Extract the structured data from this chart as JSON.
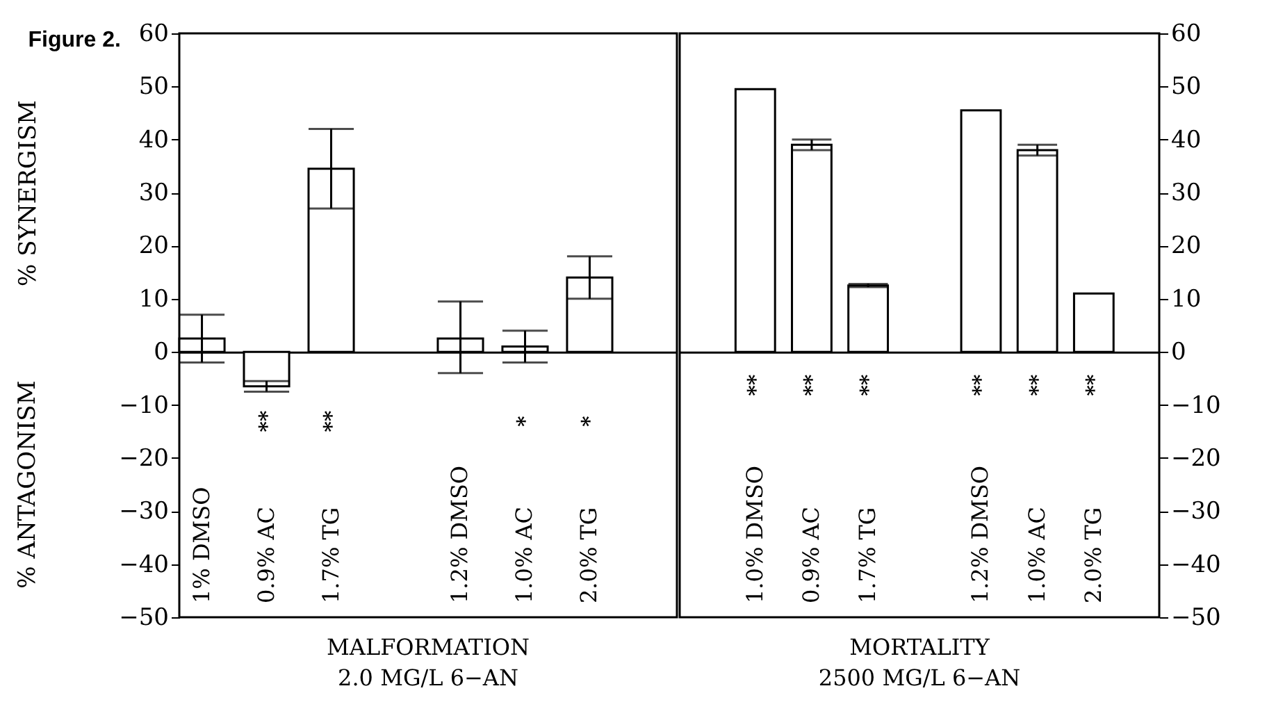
{
  "chart_data": [
    {
      "type": "bar",
      "title": "Figure 2.",
      "xlabel": "MALFORMATION\n2.0 MG/L 6−AN",
      "ylabel": "% SYNERGISM",
      "categories": [
        "1% DMSO",
        "0.9% AC",
        "1.7% TG",
        null,
        "1.2% DMSO",
        "1.0% AC",
        "2.0% TG"
      ],
      "values": [
        2.5,
        -6.5,
        34.5,
        null,
        2.5,
        1,
        14
      ],
      "errors": [
        [
          -2,
          7
        ],
        [
          -7.5,
          -5.5
        ],
        [
          27,
          42
        ],
        null,
        [
          -4,
          9.5
        ],
        [
          -2,
          4
        ],
        [
          10,
          18
        ]
      ],
      "color": "#ffffff",
      "ylim": [
        -50,
        60
      ],
      "yticks": [
        -50,
        -40,
        -30,
        -20,
        -10,
        0,
        10,
        20,
        30,
        40,
        50,
        60
      ],
      "value_labels": [
        null,
        "**",
        "**",
        null,
        null,
        "*",
        "*"
      ],
      "annotations": [
        "% ANTAGONISM"
      ]
    },
    {
      "type": "bar",
      "xlabel": "MORTALITY\n2500 MG/L 6−AN",
      "categories": [
        "1.0% DMSO",
        "0.9% AC",
        "1.7% TG",
        null,
        "1.2% DMSO",
        "1.0% AC",
        "2.0% TG"
      ],
      "values": [
        49.5,
        39,
        12.5,
        null,
        45.5,
        38,
        11
      ],
      "errors": [
        null,
        [
          38,
          40
        ],
        [
          12.2,
          12.8
        ],
        null,
        null,
        [
          37,
          39
        ],
        null
      ],
      "color": "#ffffff",
      "ylim": [
        -50,
        60
      ],
      "yticks": [
        -50,
        -40,
        -30,
        -20,
        -10,
        0,
        10,
        20,
        30,
        40,
        50,
        60
      ],
      "value_labels": [
        "**",
        "**",
        "**",
        null,
        "**",
        "**",
        "**"
      ]
    }
  ]
}
